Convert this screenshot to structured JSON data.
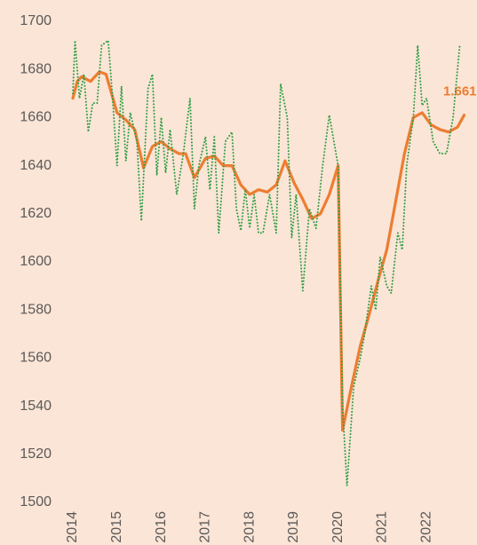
{
  "chart_data": {
    "type": "line",
    "xlim": [
      2014,
      2023
    ],
    "xticks": [
      2014,
      2015,
      2016,
      2017,
      2018,
      2019,
      2020,
      2021,
      2022
    ],
    "ylim": [
      1500,
      1700
    ],
    "yticks": [
      1500,
      1520,
      1540,
      1560,
      1580,
      1600,
      1620,
      1640,
      1660,
      1680,
      1700
    ],
    "grid": false,
    "series": [
      {
        "color": "#ed7d31",
        "style": "solid",
        "x": [
          2014.0,
          2014.1,
          2014.2,
          2014.4,
          2014.6,
          2014.75,
          2015.0,
          2015.2,
          2015.4,
          2015.6,
          2015.8,
          2016.0,
          2016.2,
          2016.4,
          2016.55,
          2016.75,
          2017.0,
          2017.2,
          2017.4,
          2017.6,
          2017.8,
          2018.0,
          2018.2,
          2018.4,
          2018.6,
          2018.8,
          2019.0,
          2019.2,
          2019.4,
          2019.6,
          2019.8,
          2020.0,
          2020.1,
          2020.3,
          2020.5,
          2020.7,
          2020.9,
          2021.1,
          2021.3,
          2021.5,
          2021.7,
          2021.9,
          2022.1,
          2022.3,
          2022.5,
          2022.7,
          2022.85
        ],
        "values": [
          1668,
          1675,
          1677,
          1675,
          1679,
          1678,
          1662,
          1659,
          1655,
          1639,
          1648,
          1650,
          1647,
          1645,
          1645,
          1635,
          1643,
          1644,
          1640,
          1640,
          1632,
          1628,
          1630,
          1629,
          1632,
          1642,
          1633,
          1626,
          1618,
          1620,
          1628,
          1640,
          1530,
          1548,
          1565,
          1578,
          1592,
          1605,
          1625,
          1645,
          1660,
          1662,
          1657,
          1655,
          1654,
          1656,
          1661
        ],
        "value_labels": [
          null,
          null,
          null,
          null,
          null,
          null,
          null,
          null,
          null,
          null,
          null,
          null,
          null,
          null,
          null,
          null,
          null,
          null,
          null,
          null,
          null,
          null,
          null,
          null,
          null,
          null,
          null,
          null,
          null,
          null,
          null,
          null,
          null,
          null,
          null,
          null,
          null,
          null,
          null,
          null,
          null,
          null,
          null,
          null,
          null,
          null,
          "1.661"
        ]
      },
      {
        "color": "#2e9e46",
        "style": "dotted",
        "x": [
          2014.0,
          2014.05,
          2014.15,
          2014.25,
          2014.35,
          2014.45,
          2014.55,
          2014.65,
          2014.8,
          2014.9,
          2015.0,
          2015.1,
          2015.2,
          2015.3,
          2015.45,
          2015.55,
          2015.7,
          2015.8,
          2015.9,
          2016.0,
          2016.1,
          2016.2,
          2016.35,
          2016.5,
          2016.65,
          2016.75,
          2016.85,
          2017.0,
          2017.1,
          2017.2,
          2017.3,
          2017.45,
          2017.6,
          2017.7,
          2017.8,
          2017.9,
          2018.0,
          2018.1,
          2018.2,
          2018.3,
          2018.45,
          2018.6,
          2018.7,
          2018.85,
          2018.95,
          2019.05,
          2019.2,
          2019.35,
          2019.5,
          2019.65,
          2019.8,
          2020.0,
          2020.1,
          2020.2,
          2020.35,
          2020.5,
          2020.6,
          2020.75,
          2020.85,
          2020.95,
          2021.1,
          2021.2,
          2021.35,
          2021.45,
          2021.55,
          2021.7,
          2021.8,
          2021.9,
          2022.0,
          2022.15,
          2022.3,
          2022.45,
          2022.6,
          2022.75
        ],
        "values": [
          1670,
          1692,
          1668,
          1678,
          1654,
          1666,
          1666,
          1690,
          1692,
          1668,
          1640,
          1673,
          1642,
          1662,
          1650,
          1617,
          1672,
          1678,
          1636,
          1660,
          1637,
          1655,
          1628,
          1645,
          1668,
          1622,
          1640,
          1652,
          1630,
          1652,
          1612,
          1650,
          1654,
          1622,
          1613,
          1630,
          1614,
          1628,
          1612,
          1612,
          1628,
          1612,
          1674,
          1660,
          1610,
          1628,
          1588,
          1622,
          1614,
          1640,
          1661,
          1640,
          1540,
          1507,
          1548,
          1560,
          1570,
          1590,
          1580,
          1602,
          1590,
          1587,
          1612,
          1605,
          1640,
          1660,
          1690,
          1665,
          1668,
          1650,
          1645,
          1645,
          1660,
          1690
        ]
      }
    ]
  }
}
